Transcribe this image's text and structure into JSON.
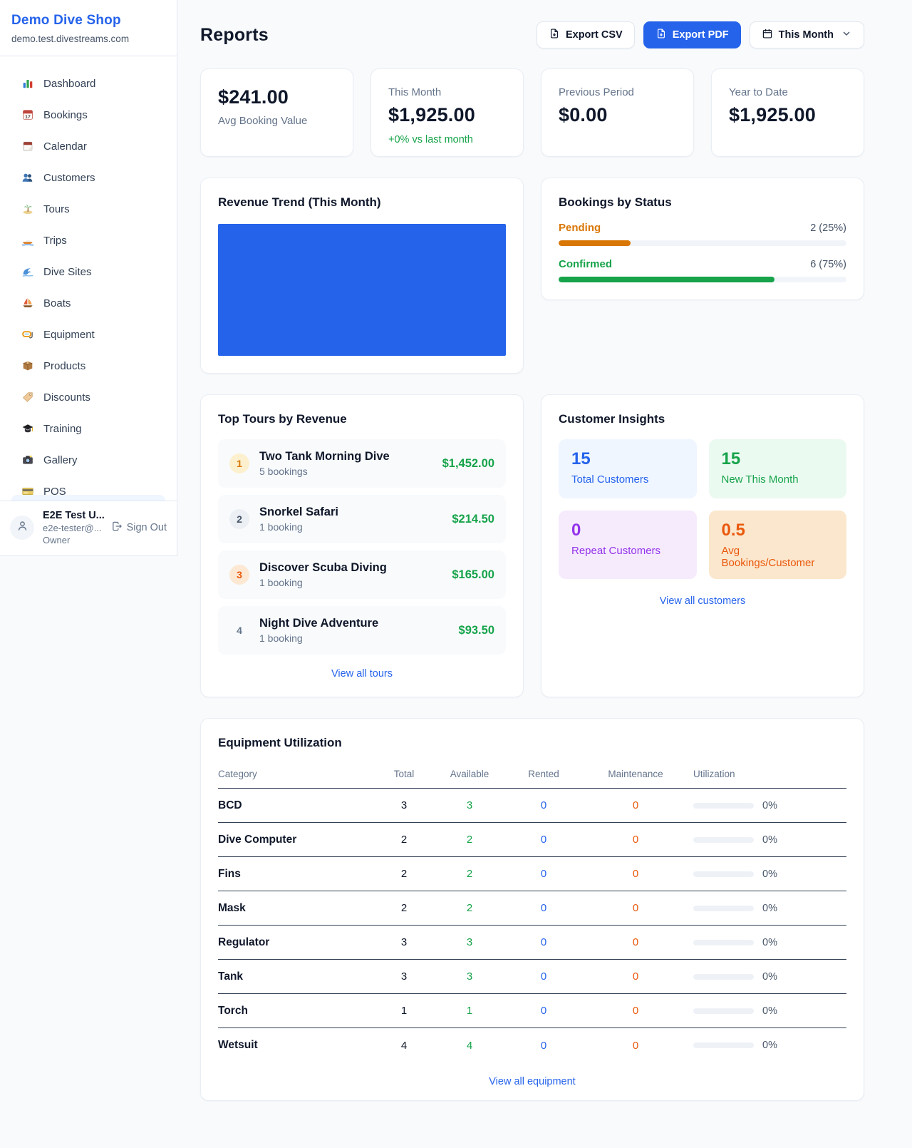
{
  "theme": {
    "accent": "#2563eb",
    "positive": "#16a34a",
    "pending": "#d97706",
    "maintenance": "#ea580c"
  },
  "sidebar": {
    "brand": {
      "name": "Demo Dive Shop",
      "domain": "demo.test.divestreams.com"
    },
    "nav": [
      {
        "icon": "dashboard-icon",
        "label": "Dashboard"
      },
      {
        "icon": "bookings-icon",
        "label": "Bookings"
      },
      {
        "icon": "calendar-icon",
        "label": "Calendar"
      },
      {
        "icon": "customers-icon",
        "label": "Customers"
      },
      {
        "icon": "tours-icon",
        "label": "Tours"
      },
      {
        "icon": "trips-icon",
        "label": "Trips"
      },
      {
        "icon": "dive-sites-icon",
        "label": "Dive Sites"
      },
      {
        "icon": "boats-icon",
        "label": "Boats"
      },
      {
        "icon": "equipment-icon",
        "label": "Equipment"
      },
      {
        "icon": "products-icon",
        "label": "Products"
      },
      {
        "icon": "discounts-icon",
        "label": "Discounts"
      },
      {
        "icon": "training-icon",
        "label": "Training"
      },
      {
        "icon": "gallery-icon",
        "label": "Gallery"
      },
      {
        "icon": "pos-icon",
        "label": "POS"
      }
    ],
    "user": {
      "name": "E2E Test U...",
      "email": "e2e-tester@...",
      "role": "Owner",
      "signout_label": "Sign Out"
    }
  },
  "header": {
    "title": "Reports",
    "export_csv_label": "Export CSV",
    "export_pdf_label": "Export PDF",
    "period_label": "This Month"
  },
  "stats": {
    "cards": [
      {
        "label": "This Month",
        "value": "$1,925.00",
        "delta": "+0% vs last month"
      },
      {
        "label": "Previous Period",
        "value": "$0.00",
        "delta": ""
      },
      {
        "label": "Year to Date",
        "value": "$1,925.00",
        "delta": ""
      }
    ],
    "avg_card": {
      "value": "$241.00",
      "label": "Avg Booking Value"
    }
  },
  "revenue_trend": {
    "title": "Revenue Trend (This Month)",
    "chart_data": {
      "type": "bar",
      "title": "Revenue Trend (This Month)",
      "bars": 1,
      "bar_fill_fraction_width": 1.0,
      "bar_fill_fraction_height": 1.0,
      "bar_color": "#2563eb",
      "axes_visible": false,
      "grid": false
    }
  },
  "bookings_by_status": {
    "title": "Bookings by Status",
    "rows": [
      {
        "label": "Pending",
        "count": "2 (25%)",
        "pct": 25,
        "color": "#d97706"
      },
      {
        "label": "Confirmed",
        "count": "6 (75%)",
        "pct": 75,
        "color": "#16a34a"
      }
    ]
  },
  "top_tours": {
    "title": "Top Tours by Revenue",
    "rows": [
      {
        "rank": "1",
        "rank_bg": "#fdf0ce",
        "rank_color": "#d97706",
        "name": "Two Tank Morning Dive",
        "bookings": "5 bookings",
        "revenue": "$1,452.00"
      },
      {
        "rank": "2",
        "rank_bg": "#eceff3",
        "rank_color": "#475569",
        "name": "Snorkel Safari",
        "bookings": "1 booking",
        "revenue": "$214.50"
      },
      {
        "rank": "3",
        "rank_bg": "#fde8d4",
        "rank_color": "#ea580c",
        "name": "Discover Scuba Diving",
        "bookings": "1 booking",
        "revenue": "$165.00"
      },
      {
        "rank": "4",
        "rank_bg": "transparent",
        "rank_color": "#64748b",
        "name": "Night Dive Adventure",
        "bookings": "1 booking",
        "revenue": "$93.50"
      }
    ],
    "link": "View all tours"
  },
  "customer_insights": {
    "title": "Customer Insights",
    "tiles": [
      {
        "value": "15",
        "label": "Total Customers",
        "color": "#2563eb",
        "bg": "#eff6ff"
      },
      {
        "value": "15",
        "label": "New This Month",
        "color": "#16a34a",
        "bg": "#ebfaf1"
      },
      {
        "value": "0",
        "label": "Repeat Customers",
        "color": "#9333ea",
        "bg": "#f6ebfd"
      },
      {
        "value": "0.5",
        "label": "Avg Bookings/Customer",
        "color": "#ea580c",
        "bg": "#fbe7cd"
      }
    ],
    "link": "View all customers"
  },
  "equipment": {
    "title": "Equipment Utilization",
    "columns": [
      "Category",
      "Total",
      "Available",
      "Rented",
      "Maintenance",
      "Utilization"
    ],
    "rows": [
      {
        "category": "BCD",
        "total": "3",
        "available": "3",
        "rented": "0",
        "maintenance": "0",
        "utilization_pct": 0,
        "utilization": "0%"
      },
      {
        "category": "Dive Computer",
        "total": "2",
        "available": "2",
        "rented": "0",
        "maintenance": "0",
        "utilization_pct": 0,
        "utilization": "0%"
      },
      {
        "category": "Fins",
        "total": "2",
        "available": "2",
        "rented": "0",
        "maintenance": "0",
        "utilization_pct": 0,
        "utilization": "0%"
      },
      {
        "category": "Mask",
        "total": "2",
        "available": "2",
        "rented": "0",
        "maintenance": "0",
        "utilization_pct": 0,
        "utilization": "0%"
      },
      {
        "category": "Regulator",
        "total": "3",
        "available": "3",
        "rented": "0",
        "maintenance": "0",
        "utilization_pct": 0,
        "utilization": "0%"
      },
      {
        "category": "Tank",
        "total": "3",
        "available": "3",
        "rented": "0",
        "maintenance": "0",
        "utilization_pct": 0,
        "utilization": "0%"
      },
      {
        "category": "Torch",
        "total": "1",
        "available": "1",
        "rented": "0",
        "maintenance": "0",
        "utilization_pct": 0,
        "utilization": "0%"
      },
      {
        "category": "Wetsuit",
        "total": "4",
        "available": "4",
        "rented": "0",
        "maintenance": "0",
        "utilization_pct": 0,
        "utilization": "0%"
      }
    ],
    "link": "View all equipment"
  }
}
